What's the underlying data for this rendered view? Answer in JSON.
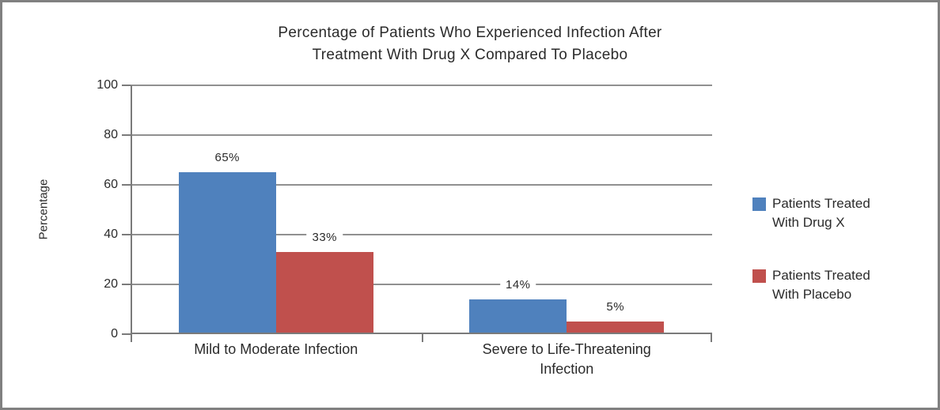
{
  "frame": {
    "background": "#ffffff",
    "border_color": "#808080"
  },
  "chart_data": {
    "type": "bar",
    "title": "Percentage of Patients Who Experienced Infection After Treatment With Drug X Compared To Placebo",
    "title_lines": [
      "Percentage of Patients Who Experienced Infection After",
      "Treatment With Drug X Compared To Placebo"
    ],
    "categories": [
      "Mild to Moderate Infection",
      "Severe to Life-Threatening Infection"
    ],
    "series": [
      {
        "name": "Patients Treated With Drug X",
        "color": "#4F81BD",
        "values": [
          65,
          14
        ],
        "data_labels": [
          "65%",
          "14%"
        ]
      },
      {
        "name": "Patients Treated With Placebo",
        "color": "#C0504D",
        "values": [
          33,
          5
        ],
        "data_labels": [
          "33%",
          "5%"
        ]
      }
    ],
    "xlabel": "",
    "ylabel": "Percentage",
    "ylim": [
      0,
      100
    ],
    "yticks": [
      0,
      20,
      40,
      60,
      80,
      100
    ],
    "grid": true,
    "legend_position": "right",
    "axis_color": "#7a7a7a",
    "gridline_color": "#909090",
    "text_color": "#2b2b2b"
  }
}
